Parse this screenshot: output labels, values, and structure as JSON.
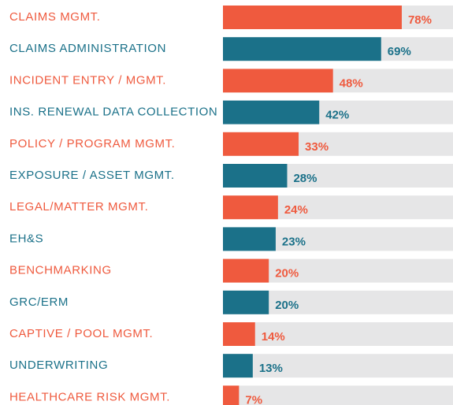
{
  "chart_data": {
    "type": "barh",
    "categories": [
      "CLAIMS MGMT.",
      "CLAIMS ADMINISTRATION",
      "INCIDENT ENTRY / MGMT.",
      "INS. RENEWAL DATA COLLECTION",
      "POLICY / PROGRAM MGMT.",
      "EXPOSURE / ASSET MGMT.",
      "LEGAL/MATTER MGMT.",
      "EH&S",
      "BENCHMARKING",
      "GRC/ERM",
      "CAPTIVE / POOL MGMT.",
      "UNDERWRITING",
      "HEALTHCARE RISK MGMT."
    ],
    "values": [
      78,
      69,
      48,
      42,
      33,
      28,
      24,
      23,
      20,
      20,
      14,
      13,
      7
    ],
    "value_labels": [
      "78%",
      "69%",
      "48%",
      "42%",
      "33%",
      "28%",
      "24%",
      "23%",
      "20%",
      "20%",
      "14%",
      "13%",
      "7%"
    ],
    "colors": [
      "#ef5a3e",
      "#1b7189",
      "#ef5a3e",
      "#1b7189",
      "#ef5a3e",
      "#1b7189",
      "#ef5a3e",
      "#1b7189",
      "#ef5a3e",
      "#1b7189",
      "#ef5a3e",
      "#1b7189",
      "#ef5a3e"
    ],
    "xlim": [
      0,
      100
    ]
  }
}
